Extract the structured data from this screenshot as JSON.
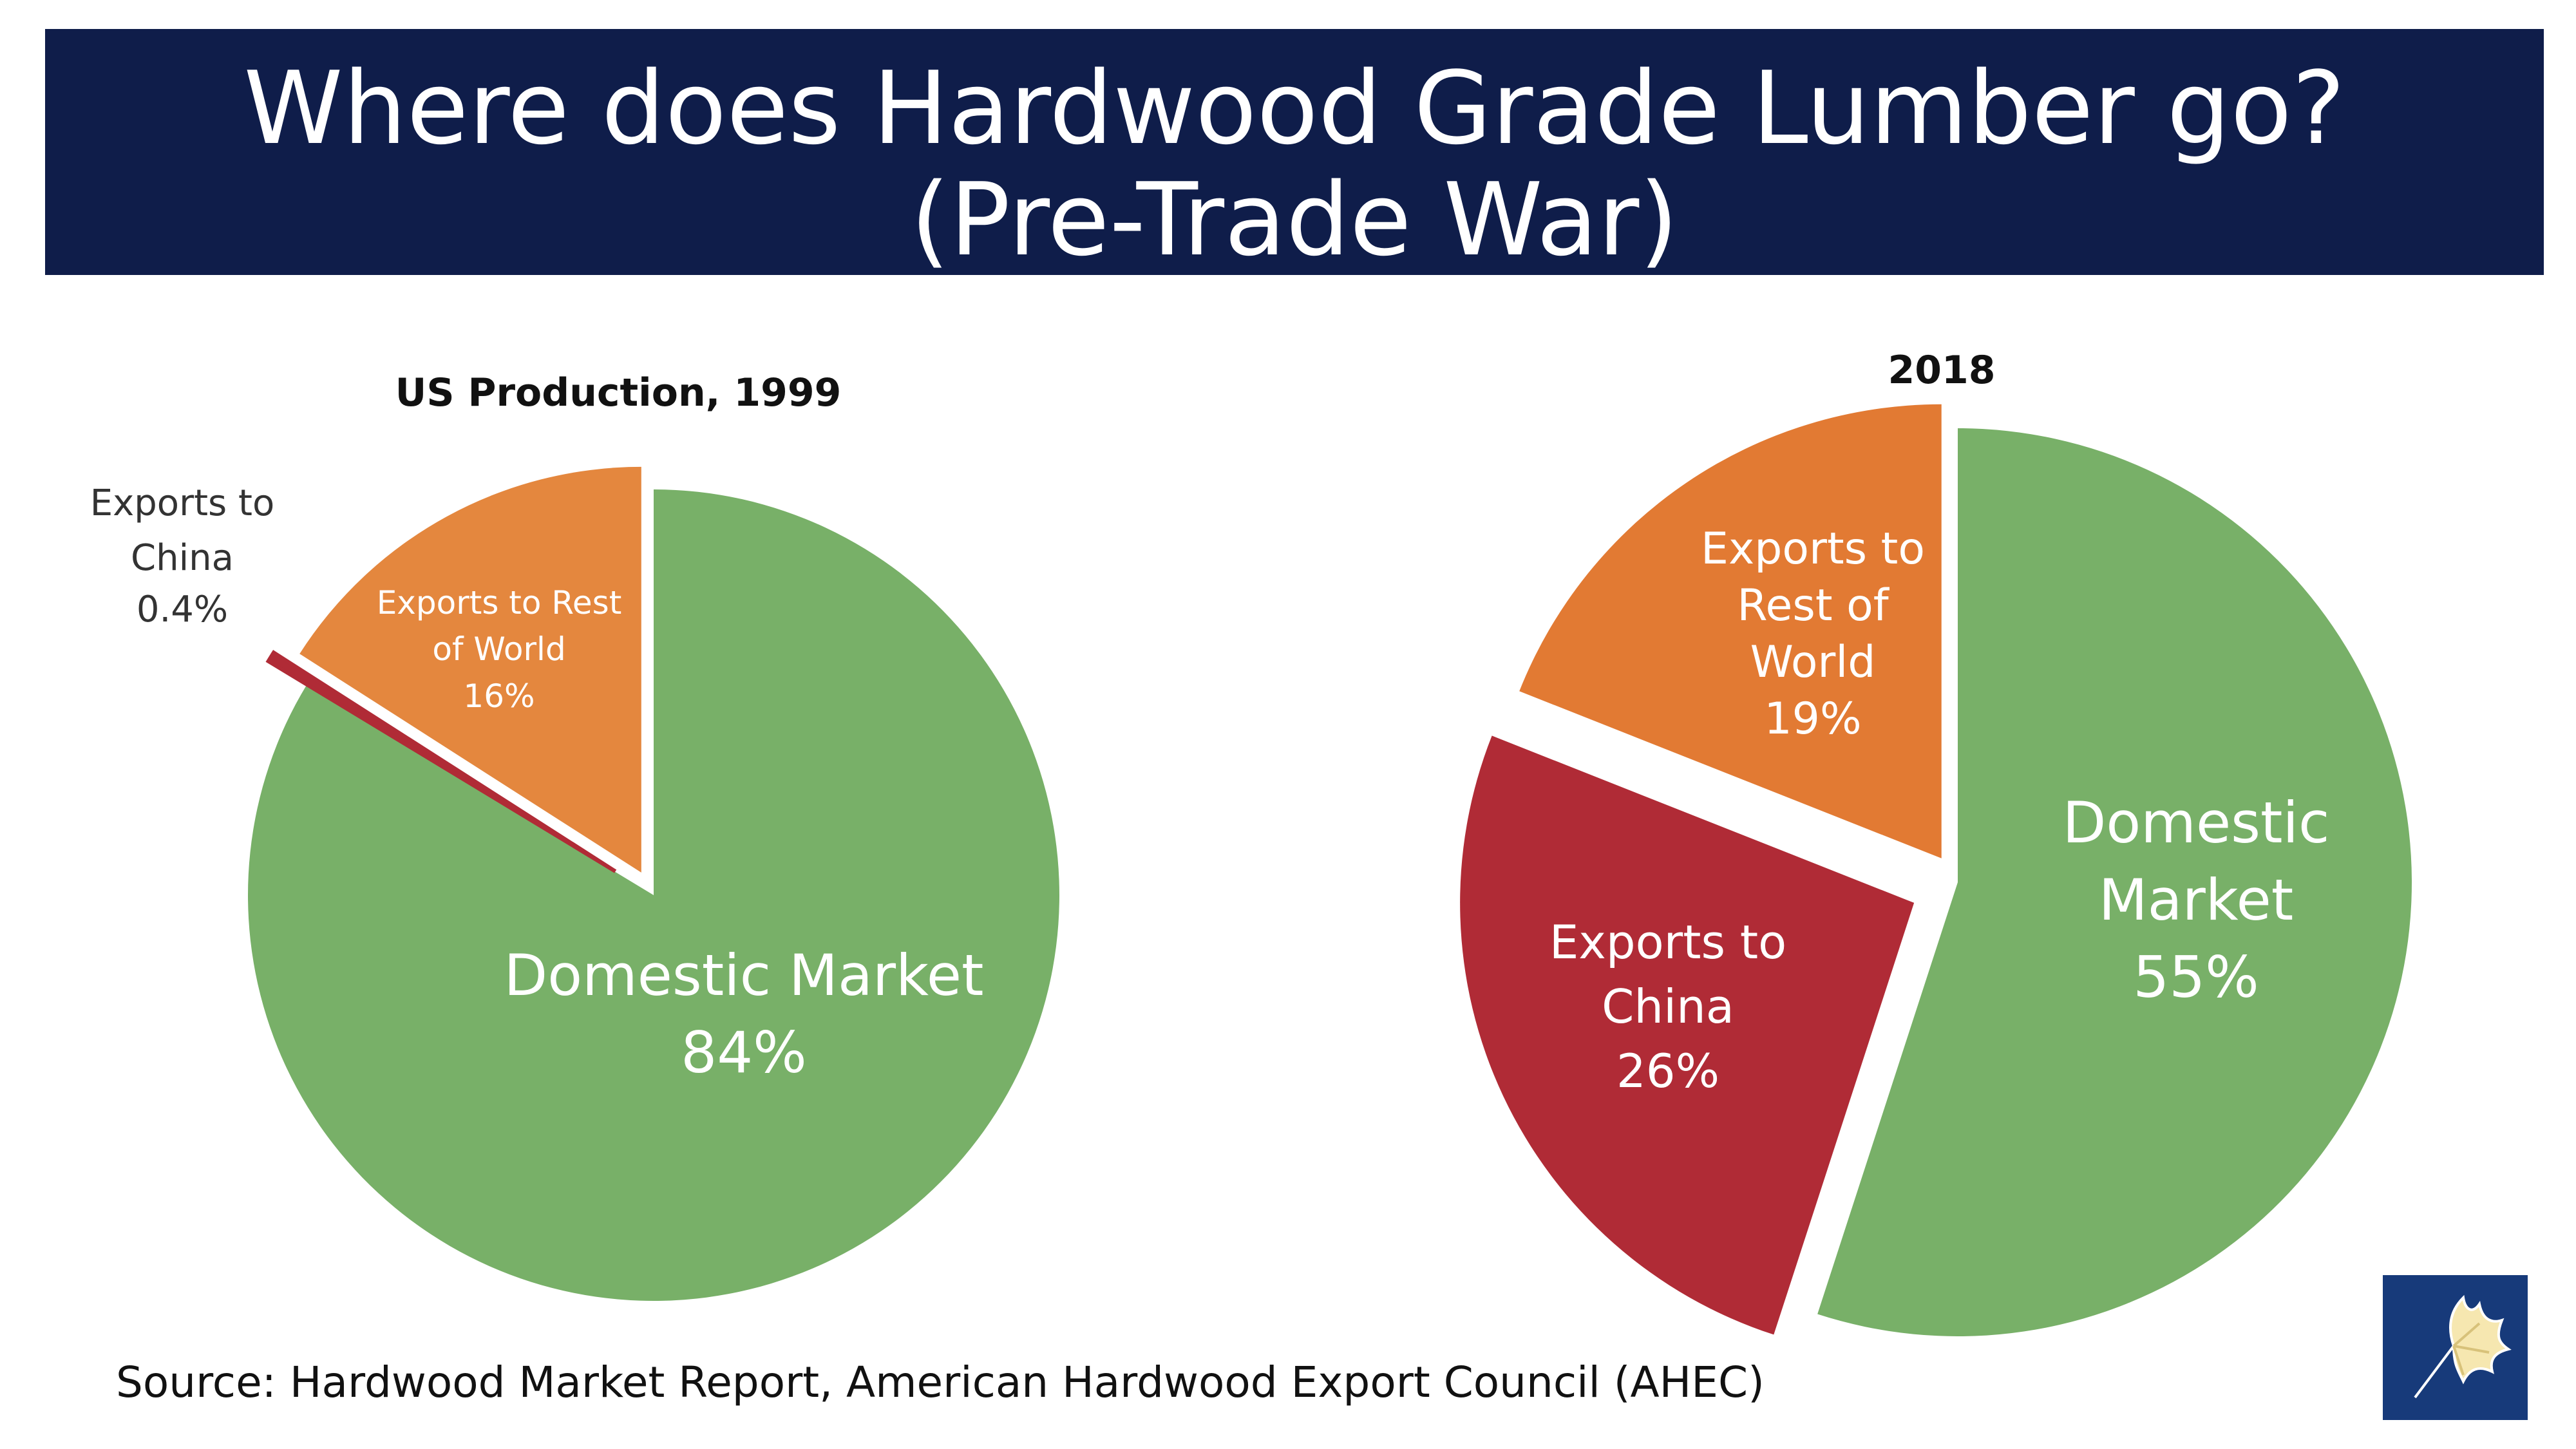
{
  "title": {
    "line1": "Where does Hardwood Grade Lumber go?",
    "line2": "(Pre-Trade War)"
  },
  "source": "Source: Hardwood Market Report, American Hardwood Export Council (AHEC)",
  "colors": {
    "banner": "#0f1d4a",
    "domestic": "#78b068",
    "rest_of_world": "#e4873e",
    "rest_of_world_2018": "#e27a33",
    "china": "#b02b36",
    "logo_bg": "#173a7a"
  },
  "chart_data": [
    {
      "type": "pie",
      "title": "US Production, 1999",
      "slices": [
        {
          "label": "Domestic Market",
          "value": 84,
          "value_label": "84%",
          "color": "#78b068"
        },
        {
          "label": "Exports to China",
          "value": 0.4,
          "value_label": "0.4%",
          "color": "#b02b36",
          "label_lines": [
            "Exports to",
            "China",
            "0.4%"
          ]
        },
        {
          "label": "Exports to Rest of World",
          "value": 16,
          "value_label": "16%",
          "color": "#e4873e",
          "label_lines": [
            "Exports to Rest",
            "of World",
            "16%"
          ]
        }
      ]
    },
    {
      "type": "pie",
      "title": "2018",
      "slices": [
        {
          "label": "Domestic Market",
          "value": 55,
          "value_label": "55%",
          "color": "#78b068",
          "label_lines": [
            "Domestic",
            "Market",
            "55%"
          ]
        },
        {
          "label": "Exports to China",
          "value": 26,
          "value_label": "26%",
          "color": "#b02b36",
          "label_lines": [
            "Exports to",
            "China",
            "26%"
          ]
        },
        {
          "label": "Exports to Rest of World",
          "value": 19,
          "value_label": "19%",
          "color": "#e27a33",
          "label_lines": [
            "Exports to",
            "Rest of",
            "World",
            "19%"
          ]
        }
      ]
    }
  ]
}
